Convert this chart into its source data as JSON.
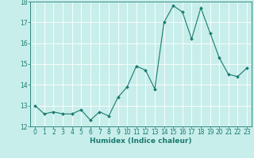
{
  "x": [
    0,
    1,
    2,
    3,
    4,
    5,
    6,
    7,
    8,
    9,
    10,
    11,
    12,
    13,
    14,
    15,
    16,
    17,
    18,
    19,
    20,
    21,
    22,
    23
  ],
  "y": [
    13.0,
    12.6,
    12.7,
    12.6,
    12.6,
    12.8,
    12.3,
    12.7,
    12.5,
    13.4,
    13.9,
    14.9,
    14.7,
    13.8,
    17.0,
    17.8,
    17.5,
    16.2,
    17.7,
    16.5,
    15.3,
    14.5,
    14.4,
    14.8
  ],
  "line_color": "#1a7a6e",
  "marker": "D",
  "marker_size": 2,
  "bg_color": "#c8eeeb",
  "grid_color": "#ffffff",
  "xlabel": "Humidex (Indice chaleur)",
  "ylim": [
    12,
    18
  ],
  "xlim": [
    -0.5,
    23.5
  ],
  "yticks": [
    12,
    13,
    14,
    15,
    16,
    17,
    18
  ],
  "xticks": [
    0,
    1,
    2,
    3,
    4,
    5,
    6,
    7,
    8,
    9,
    10,
    11,
    12,
    13,
    14,
    15,
    16,
    17,
    18,
    19,
    20,
    21,
    22,
    23
  ],
  "tick_color": "#1a7a6e",
  "label_fontsize": 6.5,
  "tick_fontsize": 5.5
}
